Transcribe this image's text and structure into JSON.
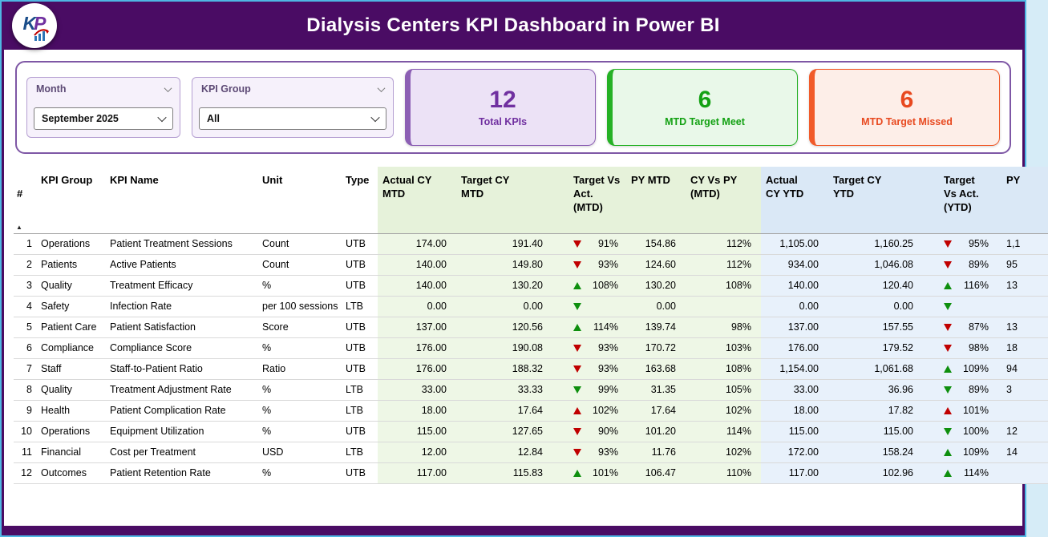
{
  "header": {
    "title": "Dialysis Centers KPI Dashboard in Power BI",
    "logo": {
      "letter_k": "K",
      "letter_p": "P"
    }
  },
  "filters": {
    "month": {
      "label": "Month",
      "value": "September 2025"
    },
    "kpi_group": {
      "label": "KPI Group",
      "value": "All"
    }
  },
  "cards": [
    {
      "value": "12",
      "label": "Total KPIs",
      "accent": "#7030a0"
    },
    {
      "value": "6",
      "label": "MTD Target Meet",
      "accent": "#13a113"
    },
    {
      "value": "6",
      "label": "MTD Target Missed",
      "accent": "#e8491f"
    }
  ],
  "table": {
    "sort_icon": "▲",
    "columns": [
      "#",
      "KPI Group",
      "KPI Name",
      "Unit",
      "Type",
      "Actual CY\nMTD",
      "Target CY\nMTD",
      "Target Vs\nAct.\n(MTD)",
      "PY MTD",
      "CY Vs PY\n(MTD)",
      "Actual\nCY YTD",
      "Target CY\nYTD",
      "Target\nVs Act.\n(YTD)",
      "PY"
    ],
    "rows": [
      {
        "n": "1",
        "group": "Operations",
        "name": "Patient Treatment Sessions",
        "unit": "Count",
        "type": "UTB",
        "a_mtd": "174.00",
        "t_mtd": "191.40",
        "tva_mtd": {
          "dir": "down",
          "col": "red",
          "pct": "91%"
        },
        "py_mtd": "154.86",
        "cvp_mtd": "112%",
        "a_ytd": "1,105.00",
        "t_ytd": "1,160.25",
        "tva_ytd": {
          "dir": "down",
          "col": "red",
          "pct": "95%"
        },
        "py_ytd": "1,1"
      },
      {
        "n": "2",
        "group": "Patients",
        "name": "Active Patients",
        "unit": "Count",
        "type": "UTB",
        "a_mtd": "140.00",
        "t_mtd": "149.80",
        "tva_mtd": {
          "dir": "down",
          "col": "red",
          "pct": "93%"
        },
        "py_mtd": "124.60",
        "cvp_mtd": "112%",
        "a_ytd": "934.00",
        "t_ytd": "1,046.08",
        "tva_ytd": {
          "dir": "down",
          "col": "red",
          "pct": "89%"
        },
        "py_ytd": "95"
      },
      {
        "n": "3",
        "group": "Quality",
        "name": "Treatment Efficacy",
        "unit": "%",
        "type": "UTB",
        "a_mtd": "140.00",
        "t_mtd": "130.20",
        "tva_mtd": {
          "dir": "up",
          "col": "green",
          "pct": "108%"
        },
        "py_mtd": "130.20",
        "cvp_mtd": "108%",
        "a_ytd": "140.00",
        "t_ytd": "120.40",
        "tva_ytd": {
          "dir": "up",
          "col": "green",
          "pct": "116%"
        },
        "py_ytd": "13"
      },
      {
        "n": "4",
        "group": "Safety",
        "name": "Infection Rate",
        "unit": "per 100 sessions",
        "type": "LTB",
        "a_mtd": "0.00",
        "t_mtd": "0.00",
        "tva_mtd": {
          "dir": "down",
          "col": "green",
          "pct": ""
        },
        "py_mtd": "0.00",
        "cvp_mtd": "",
        "a_ytd": "0.00",
        "t_ytd": "0.00",
        "tva_ytd": {
          "dir": "down",
          "col": "green",
          "pct": ""
        },
        "py_ytd": ""
      },
      {
        "n": "5",
        "group": "Patient Care",
        "name": "Patient Satisfaction",
        "unit": "Score",
        "type": "UTB",
        "a_mtd": "137.00",
        "t_mtd": "120.56",
        "tva_mtd": {
          "dir": "up",
          "col": "green",
          "pct": "114%"
        },
        "py_mtd": "139.74",
        "cvp_mtd": "98%",
        "a_ytd": "137.00",
        "t_ytd": "157.55",
        "tva_ytd": {
          "dir": "down",
          "col": "red",
          "pct": "87%"
        },
        "py_ytd": "13"
      },
      {
        "n": "6",
        "group": "Compliance",
        "name": "Compliance Score",
        "unit": "%",
        "type": "UTB",
        "a_mtd": "176.00",
        "t_mtd": "190.08",
        "tva_mtd": {
          "dir": "down",
          "col": "red",
          "pct": "93%"
        },
        "py_mtd": "170.72",
        "cvp_mtd": "103%",
        "a_ytd": "176.00",
        "t_ytd": "179.52",
        "tva_ytd": {
          "dir": "down",
          "col": "red",
          "pct": "98%"
        },
        "py_ytd": "18"
      },
      {
        "n": "7",
        "group": "Staff",
        "name": "Staff-to-Patient Ratio",
        "unit": "Ratio",
        "type": "UTB",
        "a_mtd": "176.00",
        "t_mtd": "188.32",
        "tva_mtd": {
          "dir": "down",
          "col": "red",
          "pct": "93%"
        },
        "py_mtd": "163.68",
        "cvp_mtd": "108%",
        "a_ytd": "1,154.00",
        "t_ytd": "1,061.68",
        "tva_ytd": {
          "dir": "up",
          "col": "green",
          "pct": "109%"
        },
        "py_ytd": "94"
      },
      {
        "n": "8",
        "group": "Quality",
        "name": "Treatment Adjustment Rate",
        "unit": "%",
        "type": "LTB",
        "a_mtd": "33.00",
        "t_mtd": "33.33",
        "tva_mtd": {
          "dir": "down",
          "col": "green",
          "pct": "99%"
        },
        "py_mtd": "31.35",
        "cvp_mtd": "105%",
        "a_ytd": "33.00",
        "t_ytd": "36.96",
        "tva_ytd": {
          "dir": "down",
          "col": "green",
          "pct": "89%"
        },
        "py_ytd": "3"
      },
      {
        "n": "9",
        "group": "Health",
        "name": "Patient Complication Rate",
        "unit": "%",
        "type": "LTB",
        "a_mtd": "18.00",
        "t_mtd": "17.64",
        "tva_mtd": {
          "dir": "up",
          "col": "red",
          "pct": "102%"
        },
        "py_mtd": "17.64",
        "cvp_mtd": "102%",
        "a_ytd": "18.00",
        "t_ytd": "17.82",
        "tva_ytd": {
          "dir": "up",
          "col": "red",
          "pct": "101%"
        },
        "py_ytd": ""
      },
      {
        "n": "10",
        "group": "Operations",
        "name": "Equipment Utilization",
        "unit": "%",
        "type": "UTB",
        "a_mtd": "115.00",
        "t_mtd": "127.65",
        "tva_mtd": {
          "dir": "down",
          "col": "red",
          "pct": "90%"
        },
        "py_mtd": "101.20",
        "cvp_mtd": "114%",
        "a_ytd": "115.00",
        "t_ytd": "115.00",
        "tva_ytd": {
          "dir": "down",
          "col": "green",
          "pct": "100%"
        },
        "py_ytd": "12"
      },
      {
        "n": "11",
        "group": "Financial",
        "name": "Cost per Treatment",
        "unit": "USD",
        "type": "LTB",
        "a_mtd": "12.00",
        "t_mtd": "12.84",
        "tva_mtd": {
          "dir": "down",
          "col": "red",
          "pct": "93%"
        },
        "py_mtd": "11.76",
        "cvp_mtd": "102%",
        "a_ytd": "172.00",
        "t_ytd": "158.24",
        "tva_ytd": {
          "dir": "up",
          "col": "green",
          "pct": "109%"
        },
        "py_ytd": "14"
      },
      {
        "n": "12",
        "group": "Outcomes",
        "name": "Patient Retention Rate",
        "unit": "%",
        "type": "UTB",
        "a_mtd": "117.00",
        "t_mtd": "115.83",
        "tva_mtd": {
          "dir": "up",
          "col": "green",
          "pct": "101%"
        },
        "py_mtd": "106.47",
        "cvp_mtd": "110%",
        "a_ytd": "117.00",
        "t_ytd": "102.96",
        "tva_ytd": {
          "dir": "up",
          "col": "green",
          "pct": "114%"
        },
        "py_ytd": ""
      }
    ]
  }
}
